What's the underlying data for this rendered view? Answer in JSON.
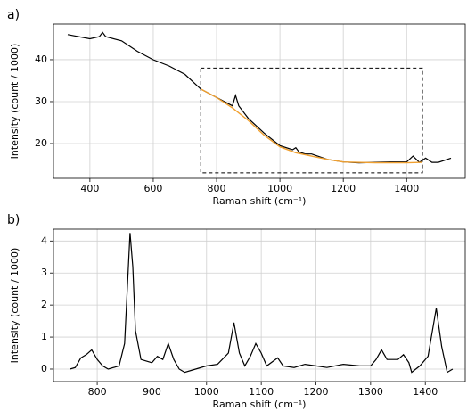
{
  "chart_data": [
    {
      "type": "line",
      "label": "a)",
      "xlabel": "Raman shift  (cm⁻¹)",
      "ylabel": "Intensity  (count / 1000)",
      "xlim": [
        285,
        1585
      ],
      "ylim": [
        11.7,
        48.5
      ],
      "xticks": [
        400,
        600,
        800,
        1000,
        1200,
        1400
      ],
      "yticks": [
        20,
        30,
        40
      ],
      "grid": true,
      "highlight": {
        "xlim": [
          750,
          1450
        ],
        "ylim": [
          13,
          38
        ]
      },
      "series": [
        {
          "color": "#000000",
          "x": [
            330,
            400,
            430,
            440,
            450,
            500,
            550,
            600,
            650,
            700,
            750,
            800,
            850,
            860,
            870,
            900,
            950,
            1000,
            1040,
            1050,
            1060,
            1080,
            1100,
            1150,
            1200,
            1250,
            1300,
            1350,
            1400,
            1420,
            1440,
            1460,
            1480,
            1500,
            1540
          ],
          "values": [
            46,
            45,
            45.5,
            46.5,
            45.5,
            44.5,
            42,
            40,
            38.5,
            36.5,
            33,
            31,
            29,
            31.5,
            29,
            26,
            22.5,
            19.5,
            18.5,
            19,
            18,
            17.5,
            17.5,
            16.2,
            15.6,
            15.4,
            15.5,
            15.6,
            15.6,
            17,
            15.5,
            16.5,
            15.5,
            15.5,
            16.5
          ]
        },
        {
          "color": "#f0a030",
          "x": [
            750,
            800,
            850,
            900,
            950,
            1000,
            1050,
            1100,
            1150,
            1200,
            1300,
            1400,
            1450
          ],
          "values": [
            33,
            31,
            28.5,
            25.5,
            22,
            19.2,
            17.8,
            17,
            16.2,
            15.6,
            15.4,
            15.4,
            15.5
          ]
        }
      ]
    },
    {
      "type": "line",
      "label": "b)",
      "xlabel": "Raman shift  (cm⁻¹)",
      "ylabel": "Intensity  (count / 1000)",
      "xlim": [
        720,
        1473
      ],
      "ylim": [
        -0.39,
        4.37
      ],
      "xticks": [
        800,
        900,
        1000,
        1100,
        1200,
        1300,
        1400
      ],
      "yticks": [
        0,
        1,
        2,
        3,
        4
      ],
      "grid": true,
      "series": [
        {
          "color": "#000000",
          "x": [
            750,
            760,
            770,
            780,
            790,
            800,
            810,
            820,
            840,
            850,
            855,
            860,
            865,
            870,
            880,
            900,
            910,
            920,
            930,
            940,
            950,
            960,
            980,
            1000,
            1020,
            1040,
            1050,
            1060,
            1070,
            1080,
            1090,
            1100,
            1110,
            1130,
            1140,
            1160,
            1180,
            1200,
            1220,
            1250,
            1280,
            1300,
            1310,
            1320,
            1330,
            1350,
            1360,
            1370,
            1375,
            1390,
            1405,
            1420,
            1430,
            1440,
            1450
          ],
          "values": [
            0,
            0.05,
            0.35,
            0.45,
            0.6,
            0.3,
            0.1,
            0,
            0.1,
            0.8,
            2.5,
            4.25,
            3.2,
            1.2,
            0.3,
            0.2,
            0.4,
            0.3,
            0.8,
            0.3,
            0,
            -0.1,
            0,
            0.1,
            0.15,
            0.5,
            1.45,
            0.5,
            0.1,
            0.4,
            0.8,
            0.5,
            0.1,
            0.35,
            0.1,
            0.05,
            0.15,
            0.1,
            0.05,
            0.15,
            0.1,
            0.1,
            0.3,
            0.6,
            0.3,
            0.3,
            0.45,
            0.2,
            -0.1,
            0.1,
            0.4,
            1.9,
            0.7,
            -0.1,
            0
          ]
        }
      ]
    }
  ]
}
